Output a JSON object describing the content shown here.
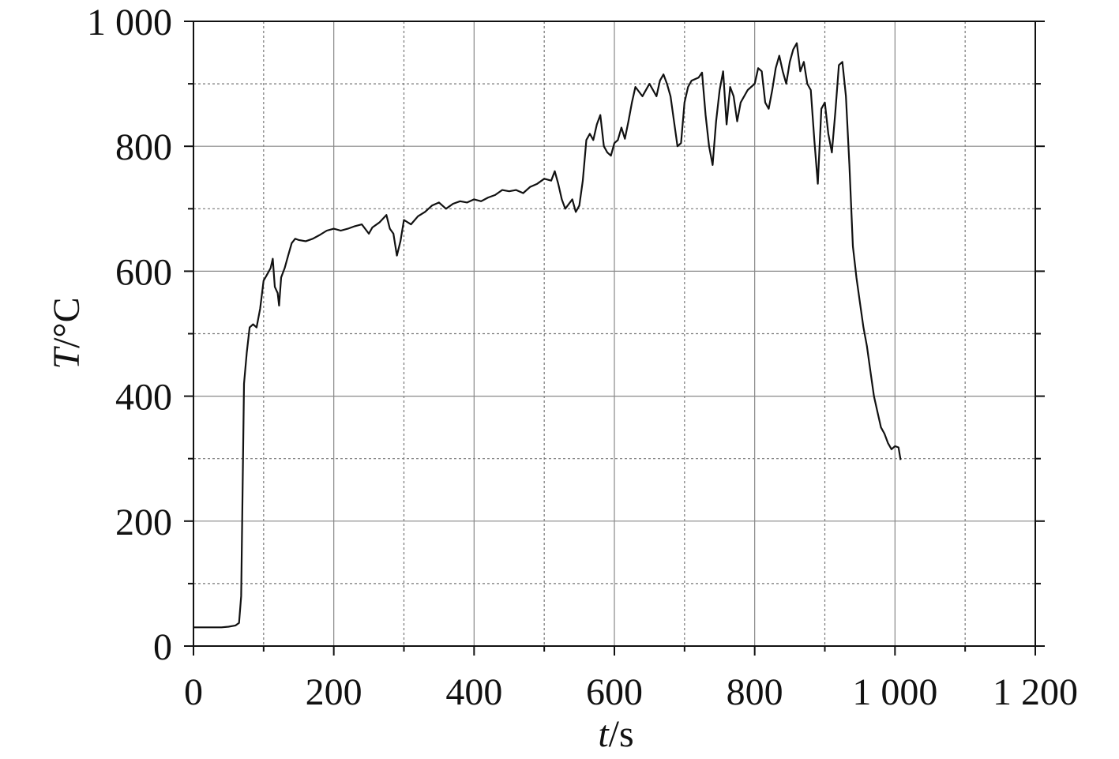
{
  "chart_data": {
    "type": "line",
    "xlabel_symbol": "t",
    "xlabel_unit": "/s",
    "ylabel_symbol": "T",
    "ylabel_unit": "/°C",
    "xlim": [
      0,
      1200
    ],
    "xticks": [
      0,
      200,
      400,
      600,
      800,
      {
        "value": 1000,
        "label": "1 000"
      },
      {
        "value": 1200,
        "label": "1 200"
      }
    ],
    "xminor": [
      100,
      300,
      500,
      700,
      900,
      1100
    ],
    "ylim": [
      0,
      1000
    ],
    "yticks": [
      0,
      200,
      400,
      600,
      800,
      {
        "value": 1000,
        "label": "1 000"
      }
    ],
    "yminor": [
      100,
      300,
      500,
      700,
      900
    ],
    "grid": true,
    "x": [
      0,
      10,
      20,
      30,
      40,
      50,
      60,
      65,
      68,
      70,
      72,
      76,
      80,
      85,
      90,
      95,
      100,
      105,
      110,
      113,
      116,
      120,
      122,
      125,
      130,
      135,
      140,
      145,
      150,
      160,
      170,
      180,
      190,
      200,
      210,
      220,
      230,
      240,
      250,
      255,
      265,
      275,
      280,
      285,
      290,
      295,
      300,
      310,
      320,
      330,
      340,
      350,
      360,
      370,
      380,
      390,
      400,
      410,
      420,
      430,
      440,
      450,
      460,
      470,
      480,
      490,
      500,
      510,
      515,
      520,
      525,
      530,
      540,
      545,
      550,
      555,
      560,
      565,
      570,
      575,
      580,
      585,
      590,
      595,
      600,
      605,
      610,
      615,
      620,
      625,
      630,
      640,
      650,
      655,
      660,
      665,
      670,
      675,
      680,
      685,
      690,
      695,
      700,
      705,
      710,
      720,
      725,
      730,
      735,
      740,
      745,
      750,
      755,
      760,
      765,
      770,
      775,
      780,
      790,
      800,
      805,
      810,
      815,
      820,
      825,
      830,
      835,
      840,
      845,
      850,
      855,
      860,
      865,
      870,
      875,
      880,
      885,
      890,
      895,
      900,
      905,
      910,
      915,
      920,
      925,
      930,
      935,
      940,
      945,
      950,
      955,
      960,
      965,
      970,
      975,
      980,
      985,
      990,
      995,
      1000,
      1005,
      1008
    ],
    "series": [
      {
        "color": "#111111",
        "values": [
          30,
          30,
          30,
          30,
          30,
          31,
          33,
          37,
          80,
          250,
          420,
          470,
          510,
          515,
          510,
          540,
          585,
          595,
          605,
          620,
          575,
          565,
          545,
          590,
          605,
          625,
          645,
          652,
          650,
          648,
          652,
          658,
          665,
          668,
          665,
          668,
          672,
          675,
          660,
          670,
          678,
          690,
          668,
          660,
          625,
          648,
          682,
          675,
          688,
          695,
          705,
          710,
          700,
          708,
          712,
          710,
          715,
          712,
          718,
          722,
          730,
          728,
          730,
          725,
          735,
          740,
          748,
          745,
          760,
          740,
          715,
          700,
          715,
          695,
          705,
          745,
          810,
          820,
          810,
          835,
          850,
          800,
          790,
          785,
          805,
          810,
          830,
          812,
          840,
          870,
          895,
          880,
          900,
          890,
          880,
          905,
          915,
          900,
          880,
          840,
          800,
          805,
          870,
          895,
          905,
          910,
          918,
          850,
          800,
          770,
          840,
          890,
          920,
          835,
          895,
          880,
          840,
          870,
          890,
          900,
          925,
          920,
          870,
          860,
          890,
          925,
          945,
          920,
          900,
          935,
          955,
          965,
          920,
          935,
          900,
          890,
          810,
          740,
          860,
          870,
          820,
          790,
          855,
          930,
          935,
          880,
          770,
          640,
          590,
          550,
          510,
          480,
          440,
          400,
          375,
          350,
          340,
          325,
          315,
          320,
          318,
          298
        ]
      }
    ]
  }
}
